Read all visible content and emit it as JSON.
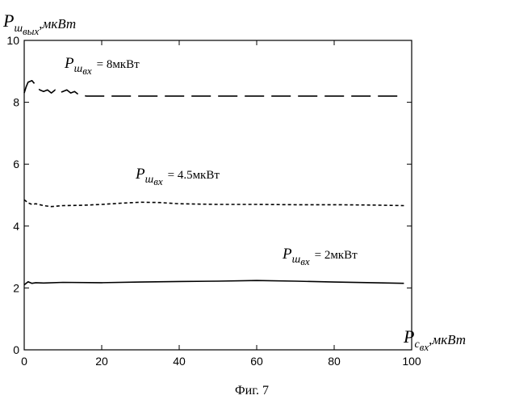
{
  "chart_data": {
    "type": "line",
    "ylabel": {
      "main": "P",
      "sub": "ш",
      "subsub": "вых",
      "unit": ",мкВт"
    },
    "xlabel": {
      "main": "P",
      "sub": "с",
      "subsub": "вх",
      "unit": ",мкВт"
    },
    "xlim": [
      0,
      100
    ],
    "ylim": [
      0,
      10
    ],
    "xticks": [
      0,
      20,
      40,
      60,
      80,
      100
    ],
    "yticks": [
      0,
      2,
      4,
      6,
      8,
      10
    ],
    "grid": false,
    "series": [
      {
        "style": "long-dash",
        "annotation": {
          "main": "P",
          "sub": "ш",
          "subsub": "вх",
          "value": "= 8мкВт"
        },
        "x": [
          0,
          0.5,
          1,
          2,
          3,
          4,
          5,
          6,
          7,
          8,
          9,
          10,
          11,
          12,
          13,
          14,
          16,
          20,
          30,
          40,
          50,
          60,
          70,
          80,
          90,
          98
        ],
        "y": [
          8.3,
          8.5,
          8.65,
          8.7,
          8.55,
          8.4,
          8.35,
          8.4,
          8.3,
          8.4,
          8.3,
          8.35,
          8.4,
          8.3,
          8.35,
          8.25,
          8.2,
          8.2,
          8.2,
          8.2,
          8.2,
          8.2,
          8.2,
          8.2,
          8.2,
          8.2
        ]
      },
      {
        "style": "short-dash",
        "annotation": {
          "main": "P",
          "sub": "ш",
          "subsub": "вх",
          "value": "= 4.5мкВт"
        },
        "x": [
          0,
          1,
          2,
          3,
          5,
          7,
          10,
          15,
          20,
          25,
          30,
          35,
          40,
          50,
          60,
          70,
          80,
          90,
          98
        ],
        "y": [
          4.85,
          4.75,
          4.7,
          4.72,
          4.66,
          4.63,
          4.66,
          4.67,
          4.7,
          4.74,
          4.77,
          4.76,
          4.72,
          4.7,
          4.7,
          4.69,
          4.69,
          4.68,
          4.66
        ]
      },
      {
        "style": "solid",
        "annotation": {
          "main": "P",
          "sub": "ш",
          "subsub": "вх",
          "value": "= 2мкВт"
        },
        "x": [
          0,
          1,
          2,
          3,
          5,
          10,
          20,
          30,
          40,
          50,
          60,
          70,
          80,
          90,
          98
        ],
        "y": [
          2.1,
          2.2,
          2.15,
          2.17,
          2.16,
          2.18,
          2.17,
          2.19,
          2.21,
          2.22,
          2.24,
          2.22,
          2.19,
          2.17,
          2.15
        ]
      }
    ]
  },
  "caption": "Фиг. 7"
}
